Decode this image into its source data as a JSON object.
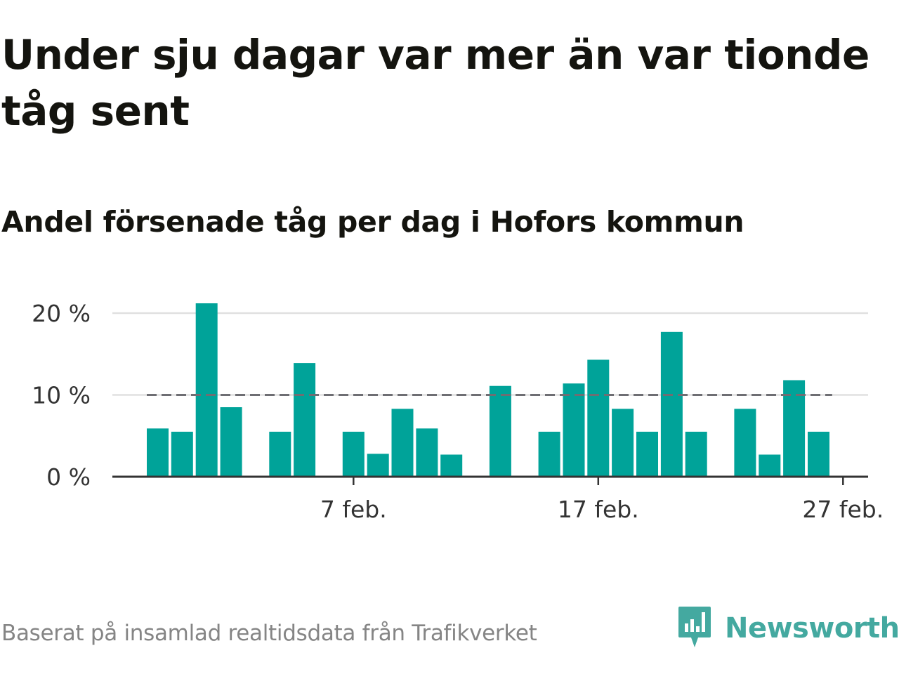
{
  "title": "Under sju dagar var mer än var tionde tåg sent",
  "subtitle": "Andel försenade tåg per dag i Hofors kommun",
  "footer": "Baserat på insamlad realtidsdata från Trafikverket",
  "brand": {
    "name": "Newsworthy",
    "color": "#44a9a0",
    "icon": "newsworthy-logo-icon"
  },
  "colors": {
    "bar": "#00a399",
    "grid": "#e0e0e0",
    "reference": "#6e6e73",
    "axis": "#333333"
  },
  "chart_data": {
    "type": "bar",
    "x": [
      "2021-01-30",
      "2021-01-31",
      "2021-02-01",
      "2021-02-02",
      "2021-02-03",
      "2021-02-04",
      "2021-02-05",
      "2021-02-06",
      "2021-02-07",
      "2021-02-08",
      "2021-02-09",
      "2021-02-10",
      "2021-02-11",
      "2021-02-12",
      "2021-02-13",
      "2021-02-14",
      "2021-02-15",
      "2021-02-16",
      "2021-02-17",
      "2021-02-18",
      "2021-02-19",
      "2021-02-20",
      "2021-02-21",
      "2021-02-22",
      "2021-02-23",
      "2021-02-24",
      "2021-02-25",
      "2021-02-26",
      "2021-02-27",
      "2021-02-28"
    ],
    "values": [
      5.9,
      5.5,
      21.2,
      8.5,
      null,
      5.5,
      13.9,
      null,
      5.5,
      2.8,
      8.3,
      5.9,
      2.7,
      null,
      11.1,
      null,
      5.5,
      11.4,
      14.3,
      8.3,
      5.5,
      17.7,
      5.5,
      null,
      8.3,
      2.7,
      11.8,
      5.5,
      null,
      null
    ],
    "ylim": [
      0,
      22
    ],
    "yticks": [
      0,
      10,
      20
    ],
    "ytick_labels": [
      "0 %",
      "10 %",
      "20 %"
    ],
    "xticks": [
      {
        "date": "2021-02-07",
        "label": "7 feb."
      },
      {
        "date": "2021-02-17",
        "label": "17 feb."
      },
      {
        "date": "2021-02-27",
        "label": "27 feb."
      }
    ],
    "reference_line": 10,
    "grid": true,
    "legend": "none",
    "xlabel": "",
    "ylabel": ""
  }
}
